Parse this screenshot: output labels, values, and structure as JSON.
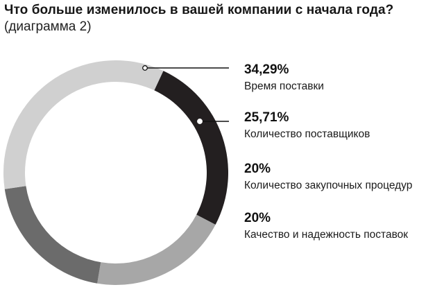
{
  "chart_data": {
    "type": "pie",
    "title": "Что больше изменилось в вашей компании с начала года?",
    "subtitle": "(диаграмма 2)",
    "donut": true,
    "slices": [
      {
        "label": "Время поставки",
        "value": 34.29,
        "value_text": "34,29%",
        "color": "#d0d0d0"
      },
      {
        "label": "Количество поставщиков",
        "value": 25.71,
        "value_text": "25,71%",
        "color": "#231f20"
      },
      {
        "label": "Количество закупочных процедур",
        "value": 20,
        "value_text": "20%",
        "color": "#a7a7a7"
      },
      {
        "label": "Качество и надежность поставок",
        "value": 20,
        "value_text": "20%",
        "color": "#6b6b6b"
      }
    ]
  }
}
